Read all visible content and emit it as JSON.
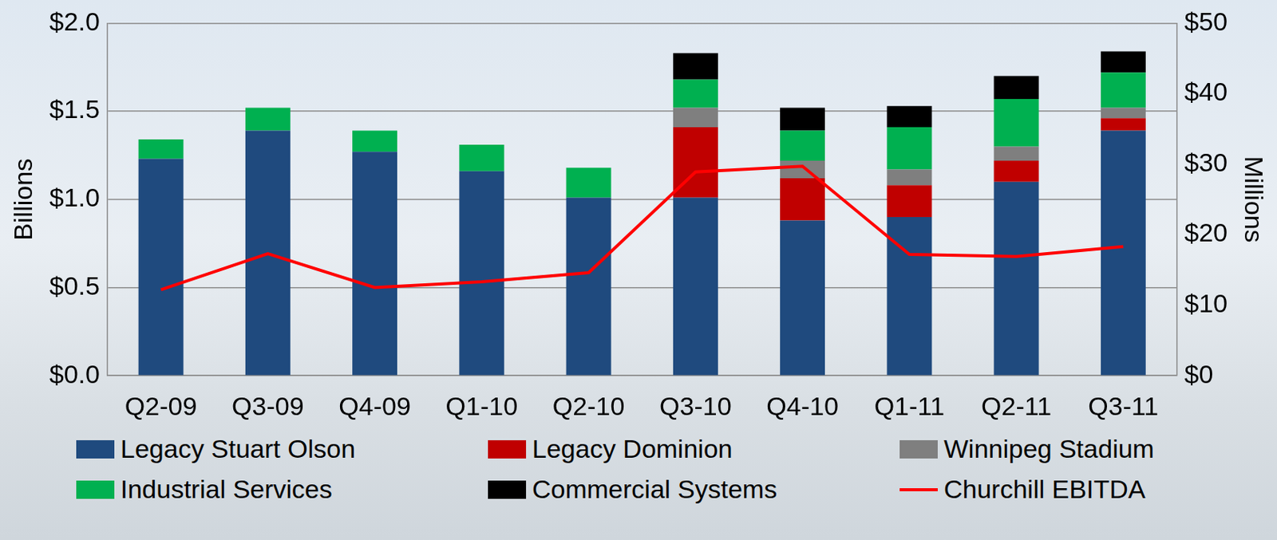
{
  "chart_data": {
    "type": "bar",
    "stacked": true,
    "grid": true,
    "legend": "bottom",
    "categories": [
      "Q2-09",
      "Q3-09",
      "Q4-09",
      "Q1-10",
      "Q2-10",
      "Q3-10",
      "Q4-10",
      "Q1-11",
      "Q2-11",
      "Q3-11"
    ],
    "ylabel": "Billions",
    "y2label": "Millions",
    "ylim": [
      0,
      2
    ],
    "yticks": [
      {
        "value": 0,
        "label": "$0.0"
      },
      {
        "value": 0.5,
        "label": "$0.5"
      },
      {
        "value": 1,
        "label": "$1.0"
      },
      {
        "value": 1.5,
        "label": "$1.5"
      },
      {
        "value": 2,
        "label": "$2.0"
      }
    ],
    "y2lim": [
      0,
      50
    ],
    "y2ticks": [
      {
        "value": 0,
        "label": "$0"
      },
      {
        "value": 10,
        "label": "$10"
      },
      {
        "value": 20,
        "label": "$20"
      },
      {
        "value": 30,
        "label": "$30"
      },
      {
        "value": 40,
        "label": "$40"
      },
      {
        "value": 50,
        "label": "$50"
      }
    ],
    "series": [
      {
        "name": "Legacy Stuart Olson",
        "color": "#1f4a7e",
        "values": [
          1.23,
          1.39,
          1.27,
          1.16,
          1.01,
          1.01,
          0.88,
          0.9,
          1.1,
          1.39
        ]
      },
      {
        "name": "Legacy Dominion",
        "color": "#c00000",
        "values": [
          null,
          null,
          null,
          null,
          null,
          0.4,
          0.24,
          0.18,
          0.12,
          0.07
        ]
      },
      {
        "name": "Winnipeg Stadium",
        "color": "#7f7f7f",
        "values": [
          null,
          null,
          null,
          null,
          null,
          0.11,
          0.1,
          0.09,
          0.08,
          0.06
        ]
      },
      {
        "name": "Industrial Services",
        "color": "#00b050",
        "values": [
          0.11,
          0.13,
          0.12,
          0.15,
          0.17,
          0.16,
          0.17,
          0.24,
          0.27,
          0.2
        ]
      },
      {
        "name": "Commercial Systems",
        "color": "#000000",
        "values": [
          null,
          null,
          null,
          null,
          null,
          0.15,
          0.13,
          0.12,
          0.13,
          0.12
        ]
      },
      {
        "name": "Churchill EBITDA",
        "color": "#ff0000",
        "type": "line",
        "axis": "y2",
        "values": [
          12.2,
          17.3,
          12.5,
          13.3,
          14.6,
          28.9,
          29.7,
          17.2,
          16.9,
          18.3
        ]
      }
    ]
  }
}
